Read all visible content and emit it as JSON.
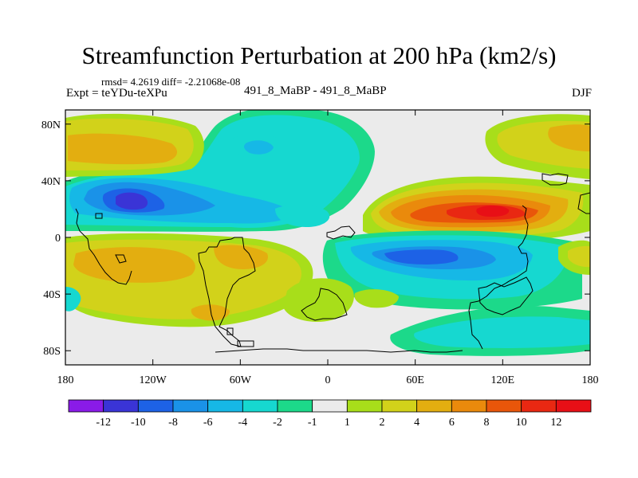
{
  "chart_data": {
    "type": "heatmap",
    "title": "Streamfunction Perturbation at 200 hPa (km2/s)",
    "stats_text": "rmsd= 4.2619 diff= -2.21068e-08",
    "experiment": "Expt = teYDu-teXPu",
    "cases": "491_8_MaBP - 491_8_MaBP",
    "season": "DJF",
    "xlim": [
      -180,
      180
    ],
    "ylim": [
      -90,
      90
    ],
    "x_ticks": [
      {
        "value": -180,
        "label": "180"
      },
      {
        "value": -120,
        "label": "120W"
      },
      {
        "value": -60,
        "label": "60W"
      },
      {
        "value": 0,
        "label": "0"
      },
      {
        "value": 60,
        "label": "60E"
      },
      {
        "value": 120,
        "label": "120E"
      },
      {
        "value": 180,
        "label": "180"
      }
    ],
    "y_ticks": [
      {
        "value": 80,
        "label": "80N"
      },
      {
        "value": 40,
        "label": "40N"
      },
      {
        "value": 0,
        "label": "0"
      },
      {
        "value": -40,
        "label": "40S"
      },
      {
        "value": -80,
        "label": "80S"
      }
    ],
    "colorbar": {
      "levels": [
        "-12",
        "-10",
        "-8",
        "-6",
        "-4",
        "-2",
        "-1",
        "1",
        "2",
        "4",
        "6",
        "8",
        "10",
        "12"
      ],
      "colors": [
        "#8a1be8",
        "#3a34d6",
        "#1d62e6",
        "#1a92e8",
        "#16b8e6",
        "#16d8d0",
        "#1cd98a",
        "#ebebeb",
        "#a8de1a",
        "#d2d21a",
        "#e3ae10",
        "#ea8a0c",
        "#e9560a",
        "#e92812",
        "#e80f16"
      ]
    },
    "features": [
      {
        "lon": -125,
        "lat": 22,
        "value": -11,
        "label": "subtropical low, North Pacific"
      },
      {
        "lon": 118,
        "lat": 18,
        "value": 12,
        "label": "subtropical high, Asia"
      },
      {
        "lon": 45,
        "lat": -15,
        "value": -9,
        "label": "tropical low, Indian Ocean"
      },
      {
        "lon": -158,
        "lat": 68,
        "value": 6,
        "label": "high, Bering region"
      },
      {
        "lon": -140,
        "lat": -18,
        "value": 6,
        "label": "high, South Pacific"
      },
      {
        "lon": -50,
        "lat": 60,
        "value": -6,
        "label": "low, North Atlantic"
      },
      {
        "lon": 170,
        "lat": 68,
        "value": 5,
        "label": "high, Siberia"
      }
    ]
  }
}
